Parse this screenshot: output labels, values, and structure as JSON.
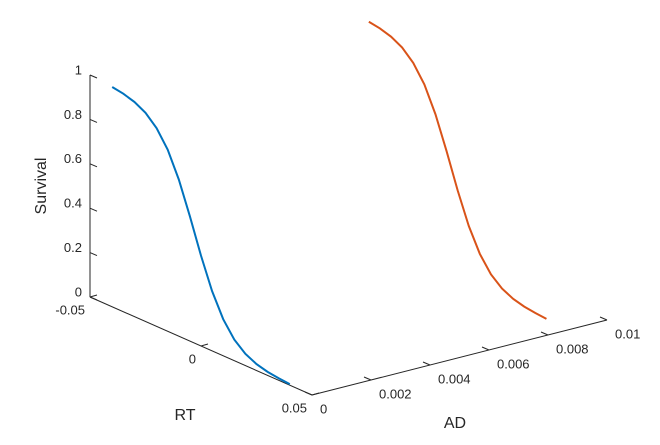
{
  "chart_data": {
    "type": "line3d",
    "xlabel": "RT",
    "ylabel": "AD",
    "zlabel": "Survival",
    "xlim": [
      -0.05,
      0.05
    ],
    "xticks": [
      -0.05,
      0,
      0.05
    ],
    "ylim": [
      0,
      0.01
    ],
    "yticks": [
      0,
      0.002,
      0.004,
      0.006,
      0.008,
      0.01
    ],
    "zlim": [
      0,
      1
    ],
    "zticks": [
      0,
      0.2,
      0.4,
      0.6,
      0.8,
      1
    ],
    "series": [
      {
        "color": "#0072bd",
        "x": [
          -0.04,
          -0.035,
          -0.03,
          -0.025,
          -0.02,
          -0.015,
          -0.01,
          -0.005,
          0,
          0.005,
          0.01,
          0.015,
          0.02,
          0.025,
          0.03,
          0.035,
          0.04
        ],
        "y": [
          0,
          0,
          0,
          0,
          0,
          0,
          0,
          0,
          0,
          0,
          0,
          0,
          0,
          0,
          0,
          0,
          0
        ],
        "z": [
          0.99,
          0.982,
          0.967,
          0.94,
          0.893,
          0.818,
          0.706,
          0.562,
          0.407,
          0.269,
          0.165,
          0.095,
          0.053,
          0.029,
          0.016,
          0.009,
          0.005
        ]
      },
      {
        "color": "#d95319",
        "x": [
          -0.04,
          -0.035,
          -0.03,
          -0.025,
          -0.02,
          -0.015,
          -0.01,
          -0.005,
          0,
          0.005,
          0.01,
          0.015,
          0.02,
          0.025,
          0.03,
          0.035,
          0.04
        ],
        "y": [
          0.0087,
          0.0087,
          0.0087,
          0.0087,
          0.0087,
          0.0087,
          0.0087,
          0.0087,
          0.0087,
          0.0087,
          0.0087,
          0.0087,
          0.0087,
          0.0087,
          0.0087,
          0.0087,
          0.0087
        ],
        "z": [
          0.99,
          0.982,
          0.967,
          0.94,
          0.893,
          0.818,
          0.706,
          0.562,
          0.407,
          0.269,
          0.165,
          0.095,
          0.053,
          0.029,
          0.016,
          0.009,
          0.005
        ]
      }
    ]
  }
}
